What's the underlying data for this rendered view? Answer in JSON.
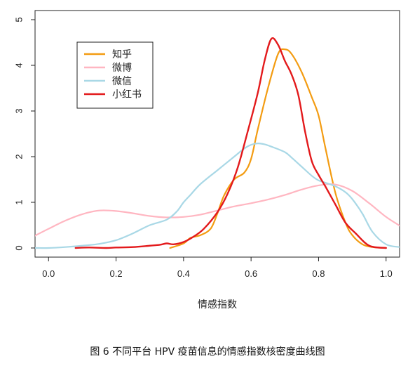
{
  "caption": "图 6  不同平台 HPV 疫苗信息的情感指数核密度曲线图",
  "chart_data": {
    "type": "line",
    "title": "",
    "xlabel": "情感指数",
    "ylabel": "",
    "xlim": [
      -0.04,
      1.04
    ],
    "ylim": [
      -0.2,
      5.2
    ],
    "xticks": [
      0.0,
      0.2,
      0.4,
      0.6,
      0.8,
      1.0
    ],
    "xtick_labels": [
      "0.0",
      "0.2",
      "0.4",
      "0.6",
      "0.8",
      "1.0"
    ],
    "yticks": [
      0,
      1,
      2,
      3,
      4,
      5
    ],
    "ytick_labels": [
      "0",
      "1",
      "2",
      "3",
      "4",
      "5"
    ],
    "grid": false,
    "legend_position": "top-left",
    "series": [
      {
        "name": "知乎",
        "color": "#f39c12",
        "x": [
          0.36,
          0.4,
          0.42,
          0.45,
          0.48,
          0.5,
          0.52,
          0.55,
          0.58,
          0.6,
          0.62,
          0.65,
          0.68,
          0.7,
          0.72,
          0.75,
          0.78,
          0.8,
          0.82,
          0.85,
          0.88,
          0.9,
          0.93,
          0.96,
          1.0
        ],
        "values": [
          0.0,
          0.1,
          0.22,
          0.28,
          0.42,
          0.75,
          1.15,
          1.5,
          1.65,
          1.95,
          2.6,
          3.5,
          4.25,
          4.35,
          4.25,
          3.85,
          3.3,
          2.9,
          2.2,
          1.2,
          0.55,
          0.28,
          0.08,
          0.02,
          0.0
        ]
      },
      {
        "name": "微博",
        "color": "#ffb6c1",
        "x": [
          -0.04,
          0.0,
          0.05,
          0.1,
          0.15,
          0.2,
          0.25,
          0.3,
          0.35,
          0.4,
          0.45,
          0.5,
          0.55,
          0.6,
          0.65,
          0.7,
          0.75,
          0.8,
          0.85,
          0.9,
          0.95,
          1.0,
          1.04
        ],
        "values": [
          0.27,
          0.42,
          0.6,
          0.74,
          0.82,
          0.81,
          0.76,
          0.7,
          0.67,
          0.68,
          0.73,
          0.82,
          0.91,
          0.98,
          1.06,
          1.16,
          1.28,
          1.37,
          1.39,
          1.25,
          0.98,
          0.68,
          0.49
        ]
      },
      {
        "name": "微信",
        "color": "#a9d8e6",
        "x": [
          -0.04,
          0.0,
          0.05,
          0.1,
          0.15,
          0.2,
          0.25,
          0.3,
          0.35,
          0.38,
          0.4,
          0.42,
          0.45,
          0.5,
          0.55,
          0.58,
          0.6,
          0.62,
          0.64,
          0.66,
          0.7,
          0.72,
          0.75,
          0.78,
          0.8,
          0.82,
          0.85,
          0.88,
          0.9,
          0.93,
          0.96,
          1.0,
          1.04
        ],
        "values": [
          0.0,
          0.0,
          0.02,
          0.05,
          0.09,
          0.17,
          0.32,
          0.5,
          0.62,
          0.8,
          1.0,
          1.16,
          1.4,
          1.7,
          2.0,
          2.18,
          2.26,
          2.29,
          2.27,
          2.22,
          2.1,
          1.98,
          1.78,
          1.58,
          1.48,
          1.43,
          1.35,
          1.22,
          1.07,
          0.75,
          0.35,
          0.08,
          0.02
        ]
      },
      {
        "name": "小红书",
        "color": "#e31a1c",
        "x": [
          0.08,
          0.12,
          0.17,
          0.2,
          0.25,
          0.3,
          0.33,
          0.35,
          0.37,
          0.4,
          0.43,
          0.46,
          0.5,
          0.53,
          0.56,
          0.59,
          0.62,
          0.64,
          0.66,
          0.68,
          0.7,
          0.72,
          0.74,
          0.76,
          0.78,
          0.8,
          0.82,
          0.85,
          0.88,
          0.91,
          0.95,
          1.0
        ],
        "values": [
          0.0,
          0.01,
          0.0,
          0.01,
          0.02,
          0.05,
          0.07,
          0.1,
          0.08,
          0.13,
          0.25,
          0.42,
          0.78,
          1.18,
          1.75,
          2.55,
          3.4,
          4.1,
          4.58,
          4.45,
          4.1,
          3.8,
          3.35,
          2.55,
          1.9,
          1.6,
          1.35,
          0.95,
          0.55,
          0.32,
          0.05,
          0.0
        ]
      }
    ]
  }
}
